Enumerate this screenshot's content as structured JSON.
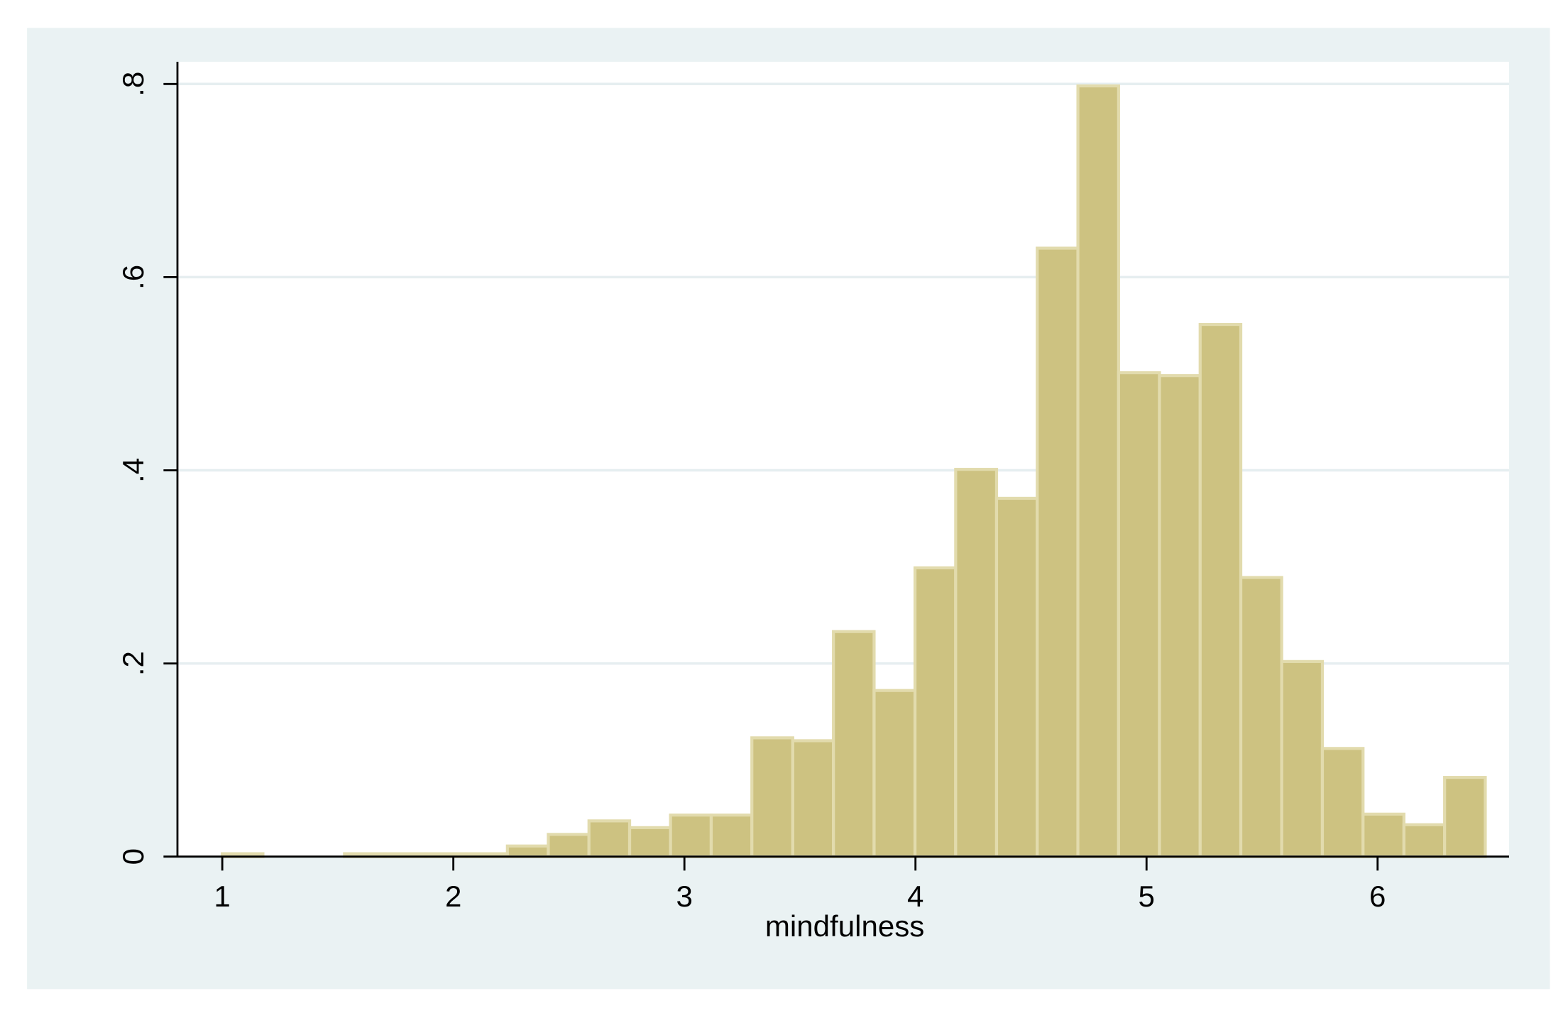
{
  "chart_data": {
    "type": "histogram",
    "x_label": "mindfulness",
    "bins": [
      1,
      1.176,
      1.353,
      1.529,
      1.705,
      1.882,
      2.058,
      2.234,
      2.411,
      2.587,
      2.763,
      2.94,
      3.116,
      3.292,
      3.469,
      3.645,
      3.821,
      3.998,
      4.174,
      4.351,
      4.527,
      4.703,
      4.879,
      5.056,
      5.232,
      5.408,
      5.585,
      5.761,
      5.937,
      6.114,
      6.29,
      6.466
    ],
    "values": [
      0.003,
      0,
      0,
      0.003,
      0.003,
      0.003,
      0.003,
      0.011,
      0.023,
      0.037,
      0.03,
      0.043,
      0.043,
      0.123,
      0.12,
      0.233,
      0.172,
      0.299,
      0.401,
      0.371,
      0.63,
      0.798,
      0.501,
      0.498,
      0.551,
      0.289,
      0.202,
      0.112,
      0.044,
      0.033,
      0.082
    ],
    "color": "#cdc281",
    "edge_color": "#e2dbad",
    "xlim": [
      0.806,
      6.569
    ],
    "ylim": [
      0,
      0.823
    ],
    "xticks": [
      1,
      2,
      3,
      4,
      5,
      6
    ],
    "yticks": [
      0,
      {
        "value": 0.2,
        "label": ".2"
      },
      {
        "value": 0.4,
        "label": ".4"
      },
      {
        "value": 0.6,
        "label": ".6"
      },
      {
        "value": 0.8,
        "label": ".8"
      }
    ],
    "grid": true
  }
}
